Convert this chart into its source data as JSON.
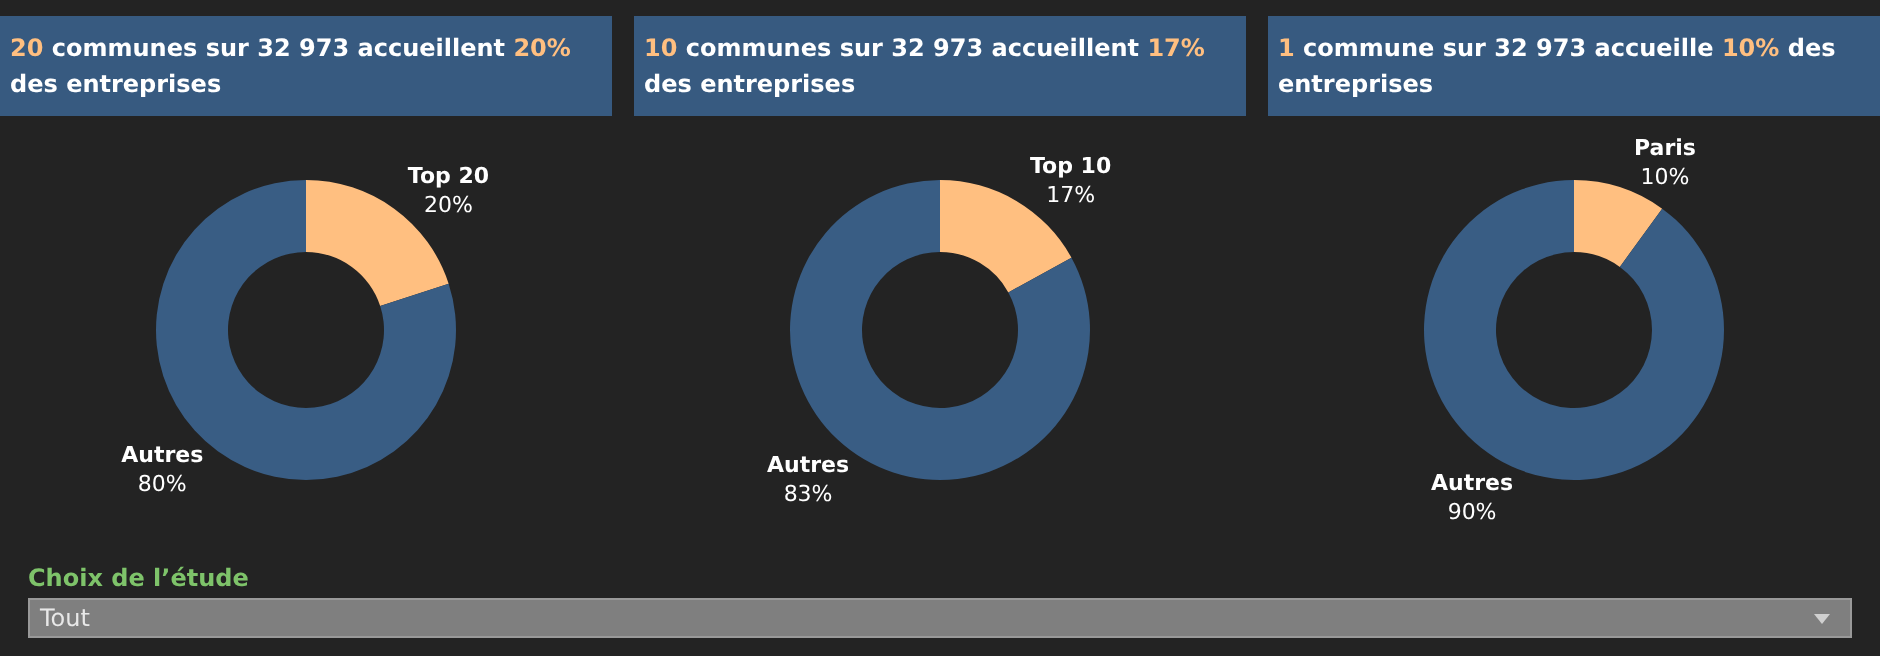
{
  "chart_data": [
    {
      "type": "donut",
      "title": "20 communes sur 32 973 accueillent 20% des entreprises",
      "categories": [
        "Top 20",
        "Autres"
      ],
      "values": [
        20,
        80
      ],
      "colors": [
        "#ffbf80",
        "#395d84"
      ],
      "value_labels": [
        "20%",
        "80%"
      ],
      "legend": false
    },
    {
      "type": "donut",
      "title": "10 communes sur 32 973 accueillent 17% des entreprises",
      "categories": [
        "Top 10",
        "Autres"
      ],
      "values": [
        17,
        83
      ],
      "colors": [
        "#ffbf80",
        "#395d84"
      ],
      "value_labels": [
        "17%",
        "83%"
      ],
      "legend": false
    },
    {
      "type": "donut",
      "title": "1 commune sur 32 973 accueille 10% des entreprises",
      "categories": [
        "Paris",
        "Autres"
      ],
      "values": [
        10,
        90
      ],
      "colors": [
        "#ffbf80",
        "#395d84"
      ],
      "value_labels": [
        "10%",
        "90%"
      ],
      "legend": false
    },
    {
      "type": "other",
      "title": "Choix de l’étude",
      "annotations": [
        "Tout"
      ]
    }
  ]
}
